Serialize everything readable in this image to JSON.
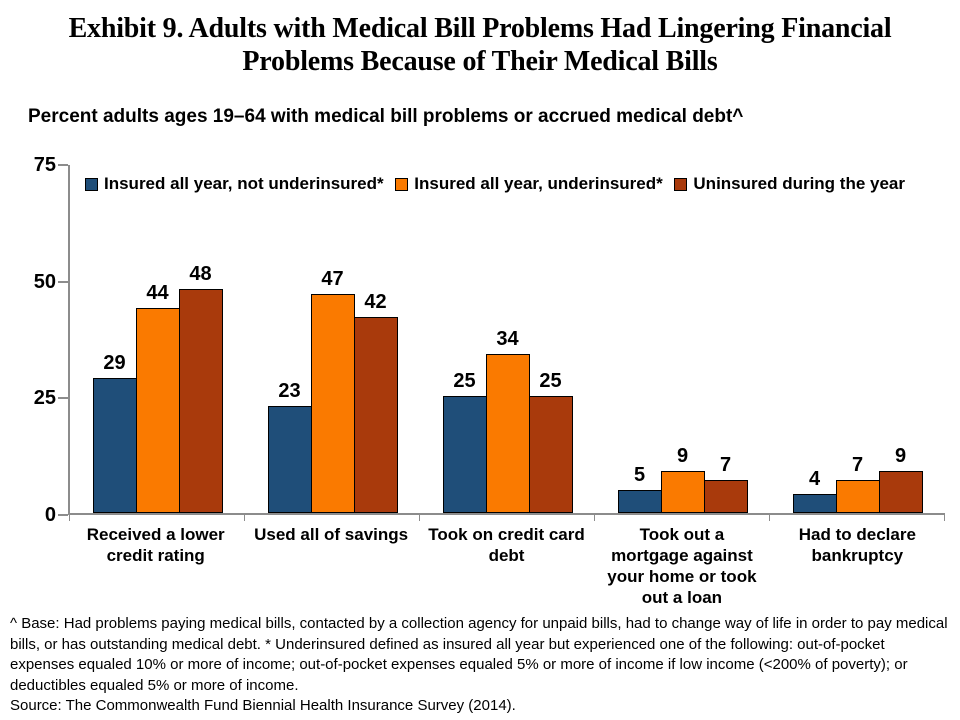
{
  "title": "Exhibit 9. Adults with Medical Bill Problems Had Lingering Financial Problems Because of Their Medical Bills",
  "subtitle": "Percent adults ages 19–64 with medical bill problems or accrued medical debt^",
  "footnote": "^ Base: Had problems paying medical bills, contacted by a collection agency for unpaid bills, had to change way of life in order to pay medical bills, or has outstanding medical debt. * Underinsured defined as insured all year but experienced one of the following: out-of-pocket expenses equaled 10% or more of income; out-of-pocket expenses equaled 5% or more of income if low income (<200% of poverty); or deductibles equaled 5% or more of income.",
  "source": "Source: The Commonwealth Fund Biennial Health Insurance Survey (2014).",
  "colors": {
    "series_blue": "#1F4E79",
    "series_orange": "#FA7A00",
    "series_dark_red": "#A93A0C",
    "axis": "#8c8c8c",
    "bar_border": "#000000",
    "text": "#000000"
  },
  "chart_data": {
    "type": "bar",
    "title": "Exhibit 9. Adults with Medical Bill Problems Had Lingering Financial Problems Because of Their Medical Bills",
    "subtitle": "Percent adults ages 19–64 with medical bill problems or accrued medical debt^",
    "categories": [
      "Received a lower credit rating",
      "Used all of savings",
      "Took on credit card debt",
      "Took out a mortgage against your home or took out a loan",
      "Had to declare bankruptcy"
    ],
    "series": [
      {
        "name": "Insured all year, not underinsured*",
        "color": "#1F4E79",
        "values": [
          29,
          23,
          25,
          5,
          4
        ]
      },
      {
        "name": "Insured all year, underinsured*",
        "color": "#FA7A00",
        "values": [
          44,
          47,
          34,
          9,
          7
        ]
      },
      {
        "name": "Uninsured during the year",
        "color": "#A93A0C",
        "values": [
          48,
          42,
          25,
          7,
          9
        ]
      }
    ],
    "ylim": [
      0,
      75
    ],
    "yticks": [
      0,
      25,
      50,
      75
    ],
    "grid": false,
    "legend_position": "top",
    "data_labels": true
  }
}
